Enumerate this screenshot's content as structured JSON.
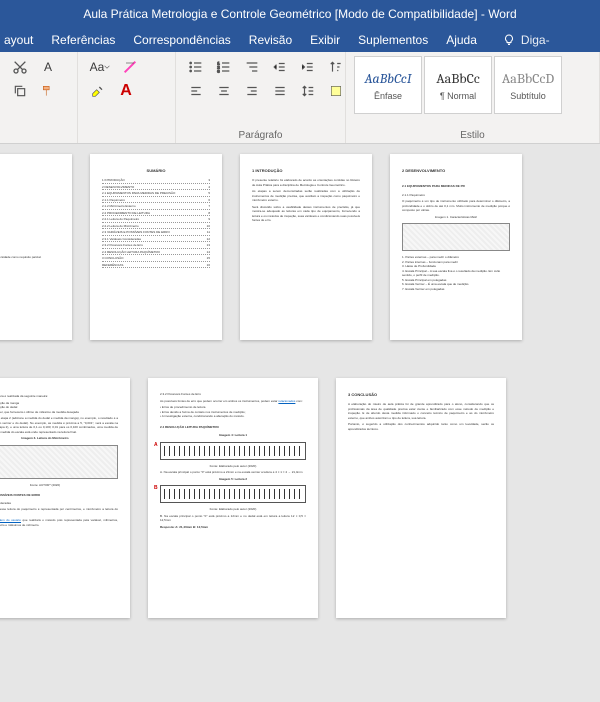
{
  "titlebar": {
    "title": "Aula Prática Metrologia e Controle Geométrico [Modo de Compatibilidade]  -  Word"
  },
  "tabs": {
    "items": [
      "ayout",
      "Referências",
      "Correspondências",
      "Revisão",
      "Exibir",
      "Suplementos",
      "Ajuda"
    ],
    "tell_me": "Diga-"
  },
  "ribbon": {
    "paragraph_label": "Parágrafo",
    "styles_label": "Estilo",
    "styles": [
      {
        "sample": "AaBbCcI",
        "label": "Ênfase",
        "variant": "i"
      },
      {
        "sample": "AaBbCc",
        "label": "¶ Normal",
        "variant": ""
      },
      {
        "sample": "AaBbCcD",
        "label": "Subtítulo",
        "variant": "g"
      }
    ]
  },
  "pages": {
    "row1": {
      "p1": {
        "red1": "DO ALUNO",
        "line1": "LA PRÁTICA",
        "line2": "TROLE GEOMÉTRICO"
      },
      "p2": {
        "title": "SUMÁRIO",
        "toc": [
          "1  INTRODUÇÃO",
          "2  DESENVOLVIMENTO",
          "2.1  EQUIPAMENTOS PARA MEDIDAS DE PRECISÃO",
          "2.1.1  Paquímetro",
          "2.1.2  Micrômetro Externo",
          "2.2  PROCEDIMENTO DE LEITURA",
          "2.2.1  Leitura do Paquímetro",
          "2.2.2  Leitura do Micrômetro",
          "2.3  VARIÁVEIS E POSSÍVEIS FONTES DE ERRO",
          "2.3.1  Variáveis Consideradas",
          "2.3.2  Possíveis Fontes de Erro",
          "2.4  RESOLUÇÃO LEITURA PAQUÍMETRO",
          "3  CONCLUSÃO",
          "REFERÊNCIAS"
        ]
      },
      "p3": {
        "title": "1 INTRODUÇÃO"
      },
      "p4": {
        "title": "2 DESENVOLVIMENTO",
        "sub": "2.1 EQUIPAMENTOS PARA MEDIDAS DE PR",
        "sub2": "2.1.1 Paquímetro"
      }
    },
    "row2": {
      "p5": {
        "etapas": [
          "• Etapa 1: Ler a medição da manga",
          "• Etapa 2: Ler a medição do dedal",
          "• Etapa 3: Ler o vernier, que fornecerá o último de milésimo da medida desejada"
        ],
        "sec": "2.3 VARIÁVEIS E POSSÍVEIS FONTES DE ERRO",
        "sub": "2.3.1 Variáveis Consideradas"
      },
      "p6": {
        "sec1": "2.3.2 Possíveis Fontes de Erro",
        "sec2": "2.4 RESOLUÇÃO LEITURA PAQUÍMETRO",
        "img1": "Imagem 4: Leitura 1",
        "res1": "A. Na escala principal o ponto \"0\" está próximo a 21mm e na escala vernier a leitura é 4 × 1 = 4 → 21,4mm",
        "img2": "Imagem 5: Leitura 2",
        "res2": "B. Na escala principal o ponto \"0\" está próximo a 12mm e no dedal está em leitura a leitura 12 × 0,5 = 12,5mm",
        "resp": "Resposta: A: 21,40mm  B: 12,5mm"
      },
      "p7": {
        "title": "3 CONCLUSÃO"
      }
    }
  },
  "colors": {
    "brand": "#2b579a",
    "canvas": "#e6e6e6",
    "ribbon": "#f3f2f1"
  }
}
